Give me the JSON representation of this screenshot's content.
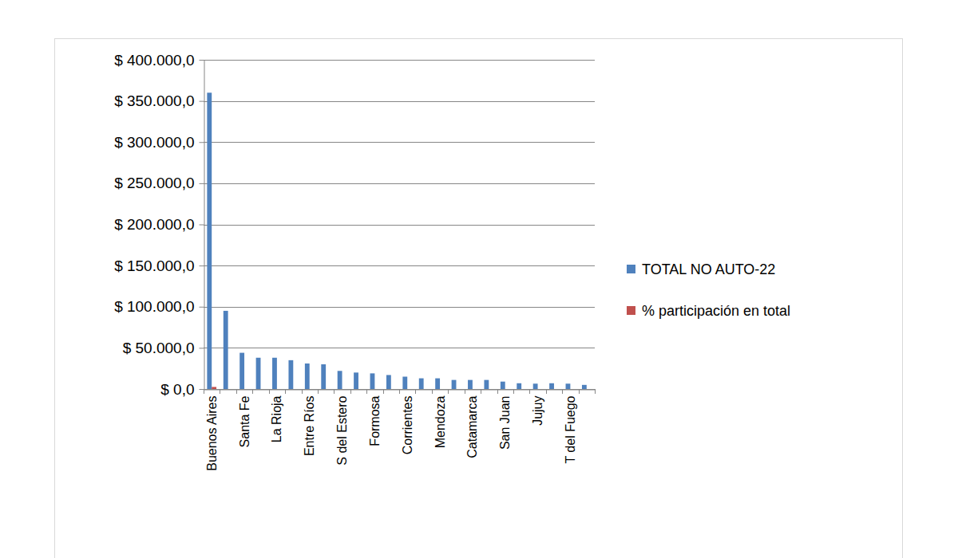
{
  "chart_data": {
    "type": "bar",
    "categories": [
      "Buenos Aires",
      null,
      "Santa Fe",
      null,
      "La Rioja",
      null,
      "Entre Ríos",
      null,
      "S del Estero",
      null,
      "Formosa",
      null,
      "Corrientes",
      null,
      "Mendoza",
      null,
      "Catamarca",
      null,
      "San Juan",
      null,
      "Jujuy",
      null,
      "T del Fuego",
      null
    ],
    "series": [
      {
        "name": "TOTAL NO AUTO-22",
        "color": "#4f81bd",
        "values": [
          360000,
          95000,
          44000,
          38000,
          38000,
          35000,
          31000,
          30000,
          22000,
          20000,
          19000,
          17000,
          15000,
          13000,
          13000,
          11000,
          11000,
          11000,
          9000,
          7000,
          6500,
          7000,
          6500,
          5000
        ]
      },
      {
        "name": "% participación en total",
        "color": "#c0504d",
        "values": [
          2500,
          0,
          0,
          0,
          0,
          0,
          0,
          0,
          0,
          0,
          0,
          0,
          0,
          0,
          0,
          0,
          0,
          0,
          0,
          0,
          0,
          0,
          0,
          0
        ]
      }
    ],
    "ylim": [
      0,
      400000
    ],
    "yticks": [
      {
        "value": 0,
        "label": "$ 0,0"
      },
      {
        "value": 50000,
        "label": "$ 50.000,0"
      },
      {
        "value": 100000,
        "label": "$ 100.000,0"
      },
      {
        "value": 150000,
        "label": "$ 150.000,0"
      },
      {
        "value": 200000,
        "label": "$ 200.000,0"
      },
      {
        "value": 250000,
        "label": "$ 250.000,0"
      },
      {
        "value": 300000,
        "label": "$ 300.000,0"
      },
      {
        "value": 350000,
        "label": "$ 350.000,0"
      },
      {
        "value": 400000,
        "label": "$ 400.000,0"
      }
    ],
    "grid": true,
    "legend": "right"
  }
}
